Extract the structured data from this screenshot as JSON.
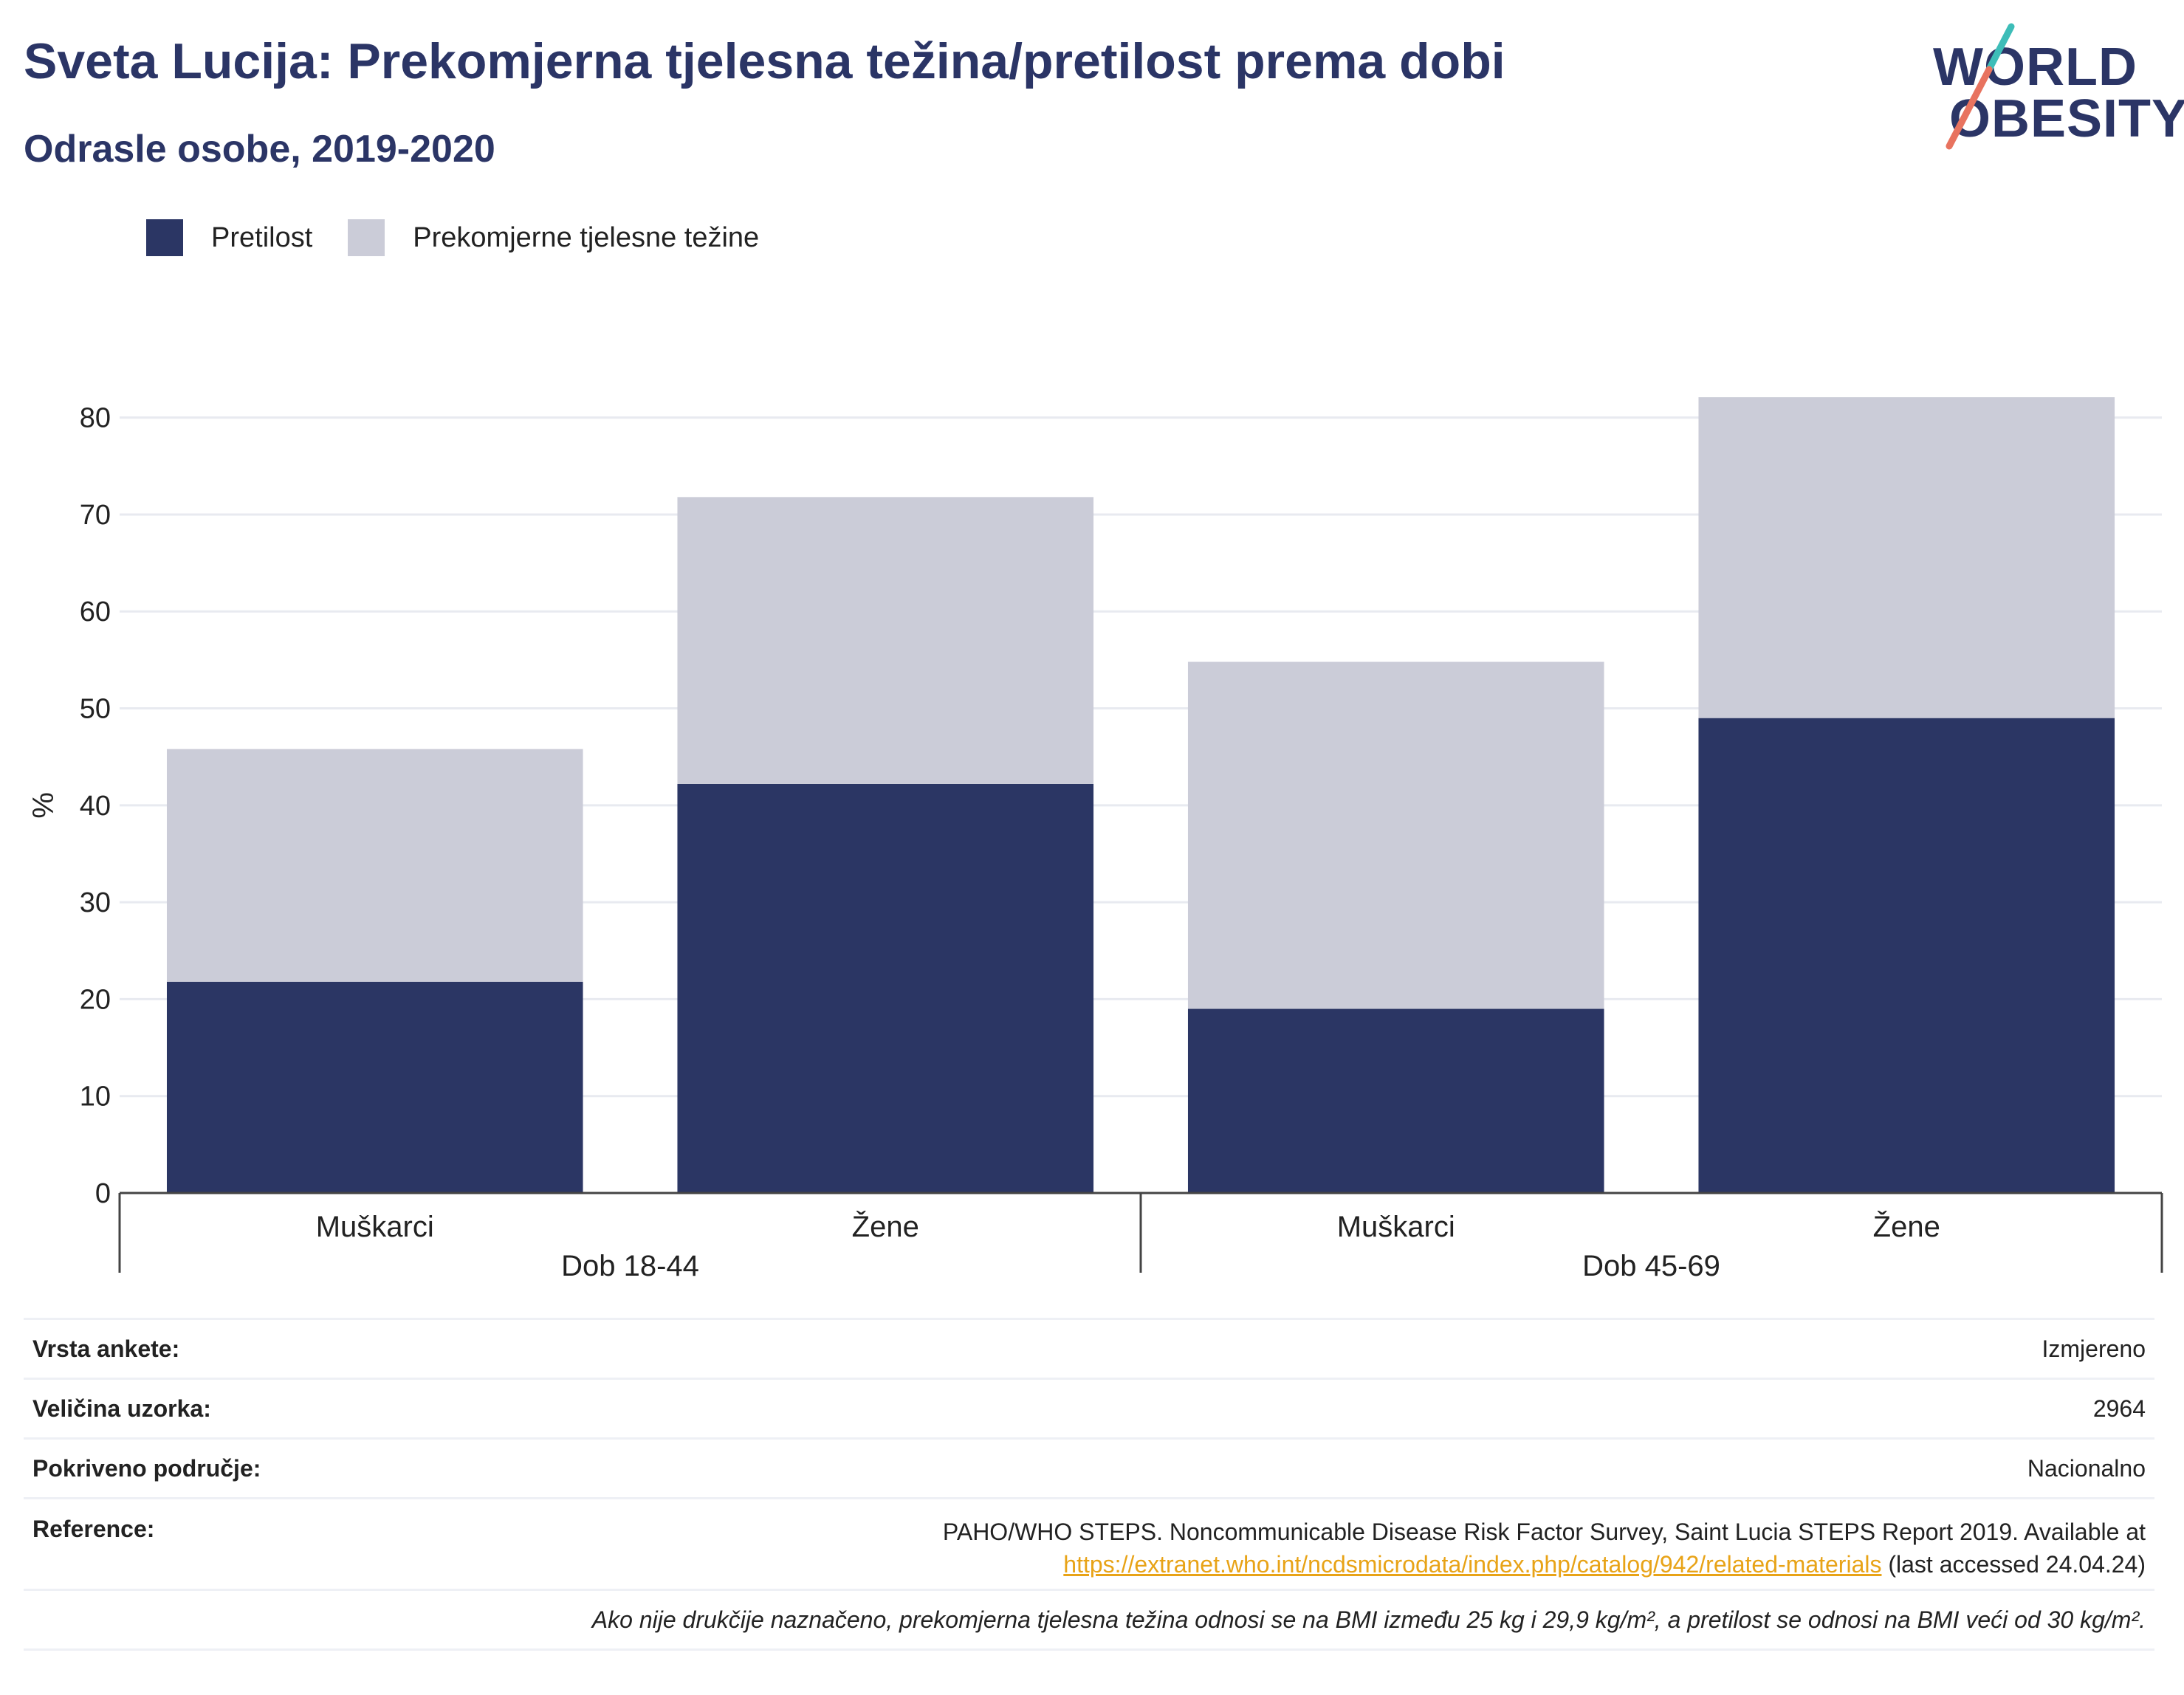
{
  "title": "Sveta Lucija: Prekomjerna tjelesna težina/pretilost prema dobi",
  "subtitle": "Odrasle osobe, 2019-2020",
  "logo": {
    "line1": "WORLD",
    "line2": "OBESITY",
    "colors": {
      "text": "#2b3566",
      "slash_top": "#3dbdb8",
      "slash_bottom": "#e8735f"
    }
  },
  "colors": {
    "obesity": "#2b3664",
    "overweight": "#cbccd8",
    "grid": "#e8eaf0",
    "axis": "#444444"
  },
  "legend": [
    {
      "label": "Pretilost",
      "color": "#2b3664"
    },
    {
      "label": "Prekomjerne tjelesne težine",
      "color": "#cbccd8"
    }
  ],
  "chart_data": {
    "type": "bar",
    "stacked": true,
    "ylabel": "%",
    "ylim": [
      0,
      85
    ],
    "yticks": [
      0,
      10,
      20,
      30,
      40,
      50,
      60,
      70,
      80
    ],
    "grid": true,
    "legend_position": "top-left",
    "categories": [
      "Muškarci",
      "Žene",
      "Muškarci",
      "Žene"
    ],
    "groups": [
      {
        "label": "Dob 18-44",
        "categories": [
          "Muškarci",
          "Žene"
        ]
      },
      {
        "label": "Dob 45-69",
        "categories": [
          "Muškarci",
          "Žene"
        ]
      }
    ],
    "series": [
      {
        "name": "Pretilost",
        "values": [
          21.8,
          42.2,
          19.0,
          49.0
        ]
      },
      {
        "name": "Prekomjerne tjelesne težine",
        "values": [
          24.0,
          29.6,
          35.8,
          33.1
        ]
      }
    ]
  },
  "info": {
    "survey_type": {
      "label": "Vrsta ankete:",
      "value": "Izmjereno"
    },
    "sample_size": {
      "label": "Veličina uzorka:",
      "value": "2964"
    },
    "coverage": {
      "label": "Pokriveno područje:",
      "value": "Nacionalno"
    },
    "reference": {
      "label": "Reference:",
      "text": "PAHO/WHO STEPS. Noncommunicable Disease Risk Factor Survey, Saint Lucia STEPS Report 2019. Available at",
      "link": "https://extranet.who.int/ncdsmicrodata/index.php/catalog/942/related-materials",
      "suffix": " (last accessed 24.04.24)"
    },
    "note": "Ako nije drukčije naznačeno, prekomjerna tjelesna težina odnosi se na BMI između 25 kg i 29,9 kg/m², a pretilost se odnosi na BMI veći od 30 kg/m²."
  }
}
